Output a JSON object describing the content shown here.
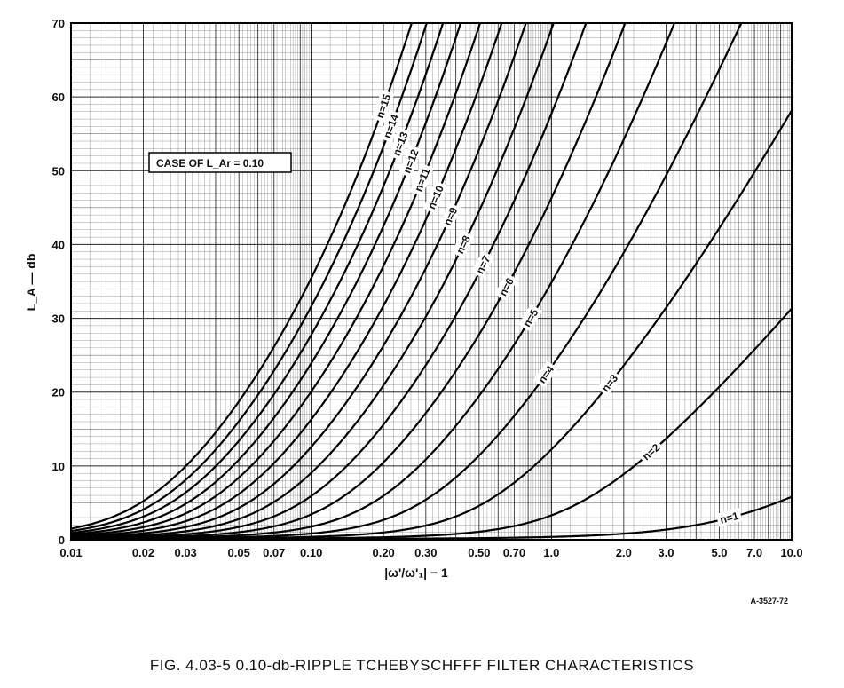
{
  "chart_data": {
    "type": "line",
    "title": "",
    "xlabel": "|ω'/ω'₁| − 1",
    "xscale": "log",
    "xlim": [
      0.01,
      10
    ],
    "xticks": [
      "0.01",
      "0.02",
      "0.03",
      "0.05",
      "0.07",
      "0.10",
      "0.20",
      "0.30",
      "0.50",
      "0.70",
      "1.0",
      "2.0",
      "3.0",
      "5.0",
      "7.0",
      "10.0"
    ],
    "xtick_values": [
      0.01,
      0.02,
      0.03,
      0.05,
      0.07,
      0.1,
      0.2,
      0.3,
      0.5,
      0.7,
      1,
      2,
      3,
      5,
      7,
      10
    ],
    "ylabel": "L_A — db",
    "ylim": [
      0,
      70
    ],
    "yticks": [
      "0",
      "10",
      "20",
      "30",
      "40",
      "50",
      "60",
      "70"
    ],
    "ytick_values": [
      0,
      10,
      20,
      30,
      40,
      50,
      60,
      70
    ],
    "grid": true,
    "ripple_db": 0.1,
    "annotation": "CASE OF L_Ar = 0.10",
    "series": [
      {
        "name": "n=1"
      },
      {
        "name": "n=2"
      },
      {
        "name": "n=3"
      },
      {
        "name": "n=4"
      },
      {
        "name": "n=5"
      },
      {
        "name": "n=6"
      },
      {
        "name": "n=7"
      },
      {
        "name": "n=8"
      },
      {
        "name": "n=9"
      },
      {
        "name": "n=10"
      },
      {
        "name": "n=11"
      },
      {
        "name": "n=12"
      },
      {
        "name": "n=13"
      },
      {
        "name": "n=14"
      },
      {
        "name": "n=15"
      }
    ],
    "label_at_x": [
      5.5,
      2.6,
      1.75,
      0.95,
      0.82,
      0.65,
      0.52,
      0.43,
      0.38,
      0.33,
      0.29,
      0.26,
      0.235,
      0.215,
      0.2
    ]
  },
  "stamp": "A-3527-72",
  "caption": "FIG. 4.03-5   0.10-db-RIPPLE TCHEBYSCHFFF FILTER CHARACTERISTICS"
}
